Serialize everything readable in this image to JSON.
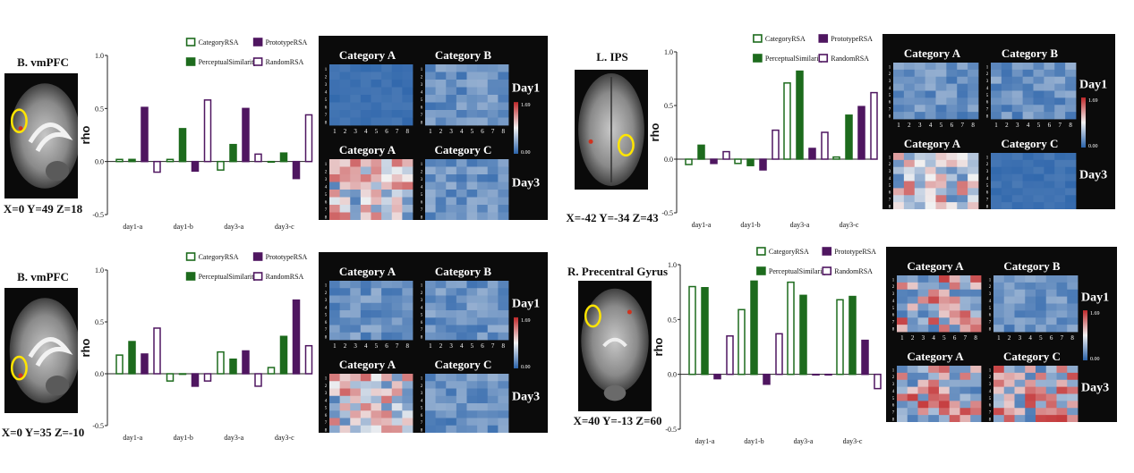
{
  "colors": {
    "category": "#1d6b1d",
    "perceptual": "#1d6b1d",
    "prototype": "#4f1660",
    "random": "#4f1660",
    "heat_low": "#2a63aa",
    "heat_mid": "#f2f2f2",
    "heat_high": "#c0282a",
    "roi": "#ffe500",
    "blob": "#d0321e"
  },
  "heatmap_labels": {
    "cat_a": "Category A",
    "cat_b": "Category B",
    "cat_c": "Category C",
    "day1": "Day1",
    "day3": "Day3",
    "cbar_max": "1.69",
    "cbar_min": "0.00",
    "axis_ticks": [
      "1",
      "2",
      "3",
      "4",
      "5",
      "6",
      "7",
      "8"
    ]
  },
  "panels": [
    {
      "region": "B. vmPFC",
      "coords": "X=0 Y=49 Z=18",
      "brain_view": "sagittal"
    },
    {
      "region": "L. IPS",
      "coords": "X=-42 Y=-34 Z=43",
      "brain_view": "axial"
    },
    {
      "region": "B. vmPFC",
      "coords": "X=0 Y=35 Z=-10",
      "brain_view": "sagittal"
    },
    {
      "region": "R. Precentral Gyrus",
      "coords": "X=40 Y=-13 Z=60",
      "brain_view": "coronal"
    }
  ],
  "chart_data": [
    {
      "type": "bar",
      "ylabel": "rho",
      "ylim": [
        -0.5,
        1.0
      ],
      "yticks": [
        "1.0",
        "0.5",
        "0.0",
        "-0.5"
      ],
      "categories": [
        "day1-a",
        "day1-b",
        "day3-a",
        "day3-c"
      ],
      "legend": [
        "CategoryRSA",
        "PrototypeRSA",
        "PerceptualSimilarity",
        "RandomRSA"
      ],
      "series": [
        {
          "name": "CategoryRSA",
          "values": [
            0.02,
            0.02,
            -0.08,
            0.0
          ]
        },
        {
          "name": "PerceptualSimilarity",
          "values": [
            0.02,
            0.31,
            0.16,
            0.08
          ]
        },
        {
          "name": "PrototypeRSA",
          "values": [
            0.51,
            -0.09,
            0.5,
            -0.16
          ]
        },
        {
          "name": "RandomRSA",
          "values": [
            -0.1,
            0.58,
            0.07,
            0.44
          ]
        }
      ]
    },
    {
      "type": "bar",
      "ylabel": "rho",
      "ylim": [
        -0.5,
        1.0
      ],
      "yticks": [
        "1.0",
        "0.5",
        "0.0",
        "-0.5"
      ],
      "categories": [
        "day1-a",
        "day1-b",
        "day3-a",
        "day3-c"
      ],
      "legend": [
        "CategoryRSA",
        "PrototypeRSA",
        "PerceptualSimilarity",
        "RandomRSA"
      ],
      "series": [
        {
          "name": "CategoryRSA",
          "values": [
            -0.05,
            -0.04,
            0.71,
            0.02
          ]
        },
        {
          "name": "PerceptualSimilarity",
          "values": [
            0.13,
            -0.06,
            0.82,
            0.41
          ]
        },
        {
          "name": "PrototypeRSA",
          "values": [
            -0.04,
            -0.1,
            0.1,
            0.49
          ]
        },
        {
          "name": "RandomRSA",
          "values": [
            0.07,
            0.27,
            0.25,
            0.62
          ]
        }
      ]
    },
    {
      "type": "bar",
      "ylabel": "rho",
      "ylim": [
        -0.5,
        1.0
      ],
      "yticks": [
        "1.0",
        "0.5",
        "0.0",
        "-0.5"
      ],
      "categories": [
        "day1-a",
        "day1-b",
        "day3-a",
        "day3-c"
      ],
      "legend": [
        "CategoryRSA",
        "PrototypeRSA",
        "PerceptualSimilarity",
        "RandomRSA"
      ],
      "series": [
        {
          "name": "CategoryRSA",
          "values": [
            0.18,
            -0.07,
            0.21,
            0.06
          ]
        },
        {
          "name": "PerceptualSimilarity",
          "values": [
            0.31,
            0.0,
            0.14,
            0.36
          ]
        },
        {
          "name": "PrototypeRSA",
          "values": [
            0.19,
            -0.12,
            0.22,
            0.71
          ]
        },
        {
          "name": "RandomRSA",
          "values": [
            0.44,
            -0.07,
            -0.12,
            0.27
          ]
        }
      ]
    },
    {
      "type": "bar",
      "ylabel": "rho",
      "ylim": [
        -0.5,
        1.0
      ],
      "yticks": [
        "1.0",
        "0.5",
        "0.0",
        "-0.5"
      ],
      "categories": [
        "day1-a",
        "day1-b",
        "day3-a",
        "day3-c"
      ],
      "legend": [
        "CategoryRSA",
        "PrototypeRSA",
        "PerceptualSimilarity",
        "RandomRSA"
      ],
      "series": [
        {
          "name": "CategoryRSA",
          "values": [
            0.8,
            0.59,
            0.84,
            0.68
          ]
        },
        {
          "name": "PerceptualSimilarity",
          "values": [
            0.79,
            0.85,
            0.72,
            0.71
          ]
        },
        {
          "name": "PrototypeRSA",
          "values": [
            -0.04,
            -0.09,
            0.0,
            0.31
          ]
        },
        {
          "name": "RandomRSA",
          "values": [
            0.35,
            0.37,
            0.0,
            -0.13
          ]
        }
      ]
    }
  ]
}
